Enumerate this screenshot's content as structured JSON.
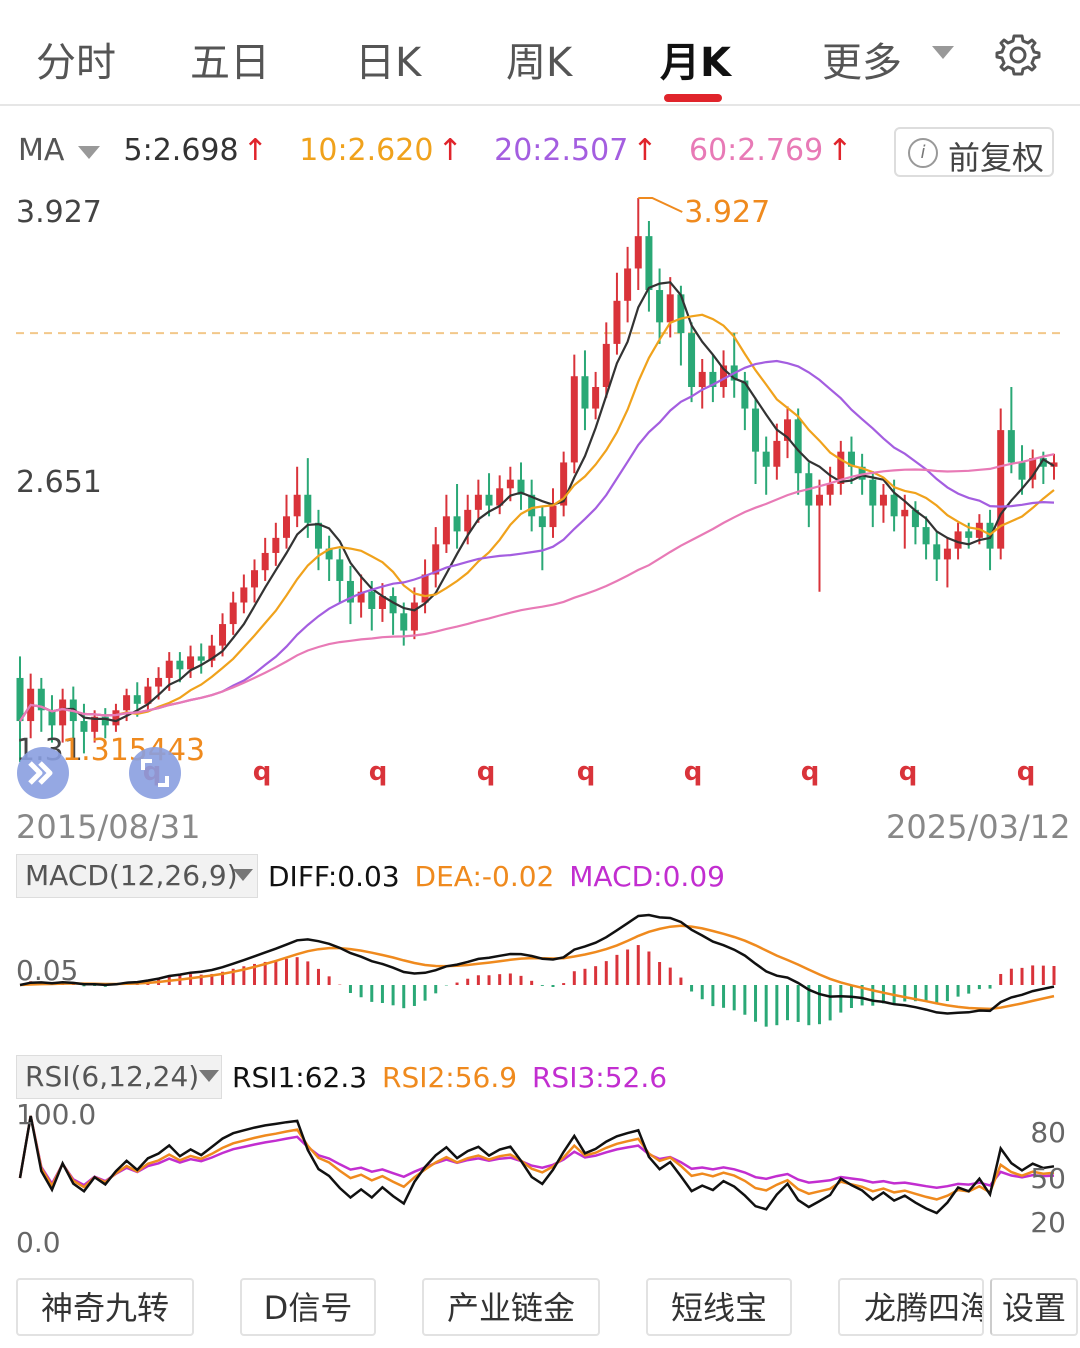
{
  "tabs": [
    {
      "label": "分时"
    },
    {
      "label": "五日"
    },
    {
      "label": "日K"
    },
    {
      "label": "周K"
    },
    {
      "label": "月K",
      "active": true
    },
    {
      "label": "更多"
    }
  ],
  "ma_bar": {
    "selector": "MA",
    "items": [
      {
        "label": "5:2.698",
        "color": "#333333"
      },
      {
        "label": "10:2.620",
        "color": "#f0a21c"
      },
      {
        "label": "20:2.507",
        "color": "#a45ee0"
      },
      {
        "label": "60:2.769",
        "color": "#e87ab6"
      }
    ],
    "arrow": "↑",
    "adjust_button": "前复权"
  },
  "chart_data": {
    "type": "candlestick",
    "period": "月K",
    "start_date": "2015/08/31",
    "end_date": "2025/03/12",
    "price_axis_labels": [
      "3.927",
      "2.651",
      "1.31"
    ],
    "high_marker": "3.927",
    "low_marker": "1.315443",
    "reference_line": 3.3,
    "ylim": [
      1.31,
      3.927
    ],
    "q_markers": [
      "q",
      "q",
      "q",
      "q",
      "q",
      "q",
      "q",
      "q",
      "q"
    ],
    "candles": [
      [
        1.7,
        1.5,
        1.8,
        1.31
      ],
      [
        1.5,
        1.65,
        1.72,
        1.42
      ],
      [
        1.65,
        1.55,
        1.7,
        1.45
      ],
      [
        1.55,
        1.48,
        1.62,
        1.4
      ],
      [
        1.48,
        1.6,
        1.65,
        1.4
      ],
      [
        1.6,
        1.5,
        1.66,
        1.4
      ],
      [
        1.5,
        1.45,
        1.58,
        1.35
      ],
      [
        1.45,
        1.52,
        1.55,
        1.4
      ],
      [
        1.52,
        1.48,
        1.56,
        1.42
      ],
      [
        1.48,
        1.55,
        1.58,
        1.45
      ],
      [
        1.55,
        1.62,
        1.65,
        1.5
      ],
      [
        1.62,
        1.58,
        1.68,
        1.52
      ],
      [
        1.58,
        1.66,
        1.7,
        1.55
      ],
      [
        1.66,
        1.7,
        1.75,
        1.6
      ],
      [
        1.7,
        1.78,
        1.82,
        1.64
      ],
      [
        1.78,
        1.74,
        1.82,
        1.68
      ],
      [
        1.74,
        1.8,
        1.85,
        1.7
      ],
      [
        1.8,
        1.78,
        1.86,
        1.72
      ],
      [
        1.78,
        1.85,
        1.9,
        1.75
      ],
      [
        1.85,
        1.95,
        2.0,
        1.8
      ],
      [
        1.95,
        2.05,
        2.1,
        1.9
      ],
      [
        2.05,
        2.12,
        2.18,
        2.0
      ],
      [
        2.12,
        2.2,
        2.25,
        2.05
      ],
      [
        2.2,
        2.28,
        2.35,
        2.15
      ],
      [
        2.28,
        2.35,
        2.42,
        2.22
      ],
      [
        2.35,
        2.45,
        2.55,
        2.3
      ],
      [
        2.45,
        2.55,
        2.68,
        2.4
      ],
      [
        2.55,
        2.42,
        2.72,
        2.35
      ],
      [
        2.42,
        2.3,
        2.48,
        2.2
      ],
      [
        2.3,
        2.25,
        2.36,
        2.15
      ],
      [
        2.25,
        2.15,
        2.3,
        2.05
      ],
      [
        2.15,
        2.05,
        2.22,
        1.95
      ],
      [
        2.05,
        2.1,
        2.18,
        1.98
      ],
      [
        2.1,
        2.02,
        2.15,
        1.92
      ],
      [
        2.02,
        2.08,
        2.14,
        1.96
      ],
      [
        2.08,
        2.0,
        2.12,
        1.9
      ],
      [
        2.0,
        1.92,
        2.05,
        1.85
      ],
      [
        1.92,
        2.05,
        2.12,
        1.88
      ],
      [
        2.05,
        2.18,
        2.25,
        2.0
      ],
      [
        2.18,
        2.32,
        2.4,
        2.12
      ],
      [
        2.32,
        2.45,
        2.55,
        2.28
      ],
      [
        2.45,
        2.38,
        2.6,
        2.3
      ],
      [
        2.38,
        2.48,
        2.55,
        2.32
      ],
      [
        2.48,
        2.55,
        2.62,
        2.42
      ],
      [
        2.55,
        2.5,
        2.65,
        2.45
      ],
      [
        2.5,
        2.58,
        2.64,
        2.46
      ],
      [
        2.58,
        2.62,
        2.68,
        2.52
      ],
      [
        2.62,
        2.55,
        2.7,
        2.48
      ],
      [
        2.55,
        2.45,
        2.62,
        2.38
      ],
      [
        2.45,
        2.4,
        2.5,
        2.2
      ],
      [
        2.4,
        2.5,
        2.58,
        2.35
      ],
      [
        2.5,
        2.7,
        2.75,
        2.45
      ],
      [
        2.7,
        3.1,
        3.2,
        2.65
      ],
      [
        3.1,
        2.95,
        3.22,
        2.85
      ],
      [
        2.95,
        3.05,
        3.12,
        2.9
      ],
      [
        3.05,
        3.25,
        3.35,
        3.0
      ],
      [
        3.25,
        3.45,
        3.58,
        3.2
      ],
      [
        3.45,
        3.6,
        3.7,
        3.35
      ],
      [
        3.6,
        3.75,
        3.927,
        3.5
      ],
      [
        3.75,
        3.5,
        3.82,
        3.4
      ],
      [
        3.5,
        3.35,
        3.6,
        3.25
      ],
      [
        3.35,
        3.48,
        3.56,
        3.28
      ],
      [
        3.48,
        3.3,
        3.52,
        3.15
      ],
      [
        3.3,
        3.05,
        3.35,
        2.98
      ],
      [
        3.05,
        3.12,
        3.18,
        2.95
      ],
      [
        3.12,
        3.05,
        3.2,
        2.98
      ],
      [
        3.05,
        3.15,
        3.22,
        3.0
      ],
      [
        3.15,
        3.08,
        3.3,
        3.0
      ],
      [
        3.08,
        2.95,
        3.12,
        2.85
      ],
      [
        2.95,
        2.75,
        3.0,
        2.6
      ],
      [
        2.75,
        2.68,
        2.82,
        2.55
      ],
      [
        2.68,
        2.8,
        2.88,
        2.62
      ],
      [
        2.8,
        2.9,
        2.96,
        2.72
      ],
      [
        2.9,
        2.65,
        2.95,
        2.55
      ],
      [
        2.65,
        2.5,
        2.7,
        2.4
      ],
      [
        2.5,
        2.55,
        2.62,
        2.1
      ],
      [
        2.55,
        2.6,
        2.68,
        2.5
      ],
      [
        2.6,
        2.75,
        2.8,
        2.55
      ],
      [
        2.75,
        2.68,
        2.82,
        2.6
      ],
      [
        2.68,
        2.62,
        2.74,
        2.55
      ],
      [
        2.62,
        2.5,
        2.66,
        2.4
      ],
      [
        2.5,
        2.55,
        2.6,
        2.42
      ],
      [
        2.55,
        2.45,
        2.62,
        2.38
      ],
      [
        2.45,
        2.48,
        2.55,
        2.3
      ],
      [
        2.48,
        2.4,
        2.52,
        2.32
      ],
      [
        2.4,
        2.32,
        2.45,
        2.25
      ],
      [
        2.32,
        2.25,
        2.38,
        2.15
      ],
      [
        2.25,
        2.3,
        2.35,
        2.12
      ],
      [
        2.3,
        2.38,
        2.42,
        2.25
      ],
      [
        2.38,
        2.35,
        2.42,
        2.3
      ],
      [
        2.35,
        2.42,
        2.46,
        2.32
      ],
      [
        2.42,
        2.3,
        2.48,
        2.2
      ],
      [
        2.3,
        2.85,
        2.95,
        2.25
      ],
      [
        2.85,
        2.7,
        3.05,
        2.65
      ],
      [
        2.7,
        2.62,
        2.78,
        2.55
      ],
      [
        2.62,
        2.72,
        2.76,
        2.58
      ],
      [
        2.72,
        2.68,
        2.75,
        2.6
      ],
      [
        2.68,
        2.7,
        2.74,
        2.62
      ]
    ],
    "ma_series": [
      {
        "name": "MA5",
        "color": "#333333"
      },
      {
        "name": "MA10",
        "color": "#f0a21c"
      },
      {
        "name": "MA20",
        "color": "#a45ee0"
      },
      {
        "name": "MA60",
        "color": "#e87ab6"
      }
    ]
  },
  "macd": {
    "selector": "MACD(12,26,9)",
    "diff": "DIFF:0.03",
    "dea": "DEA:-0.02",
    "macd": "MACD:0.09",
    "axis_label": "0.05",
    "colors": {
      "diff": "#111111",
      "dea": "#ef8a1e",
      "macd": "#c22ed0",
      "up": "#d9333a",
      "down": "#2aa876"
    }
  },
  "rsi": {
    "selector": "RSI(6,12,24)",
    "rsi1": "RSI1:62.3",
    "rsi2": "RSI2:56.9",
    "rsi3": "RSI3:52.6",
    "left_labels": [
      "100.0",
      "0.0"
    ],
    "right_labels": [
      "80",
      "50",
      "20"
    ],
    "colors": {
      "rsi1": "#111111",
      "rsi2": "#ef8a1e",
      "rsi3": "#c22ed0"
    }
  },
  "bottom_buttons": [
    {
      "label": "神奇九转"
    },
    {
      "label": "D信号"
    },
    {
      "label": "产业链金"
    },
    {
      "label": "短线宝"
    },
    {
      "label": "龙腾四海"
    },
    {
      "label": "设置"
    }
  ]
}
